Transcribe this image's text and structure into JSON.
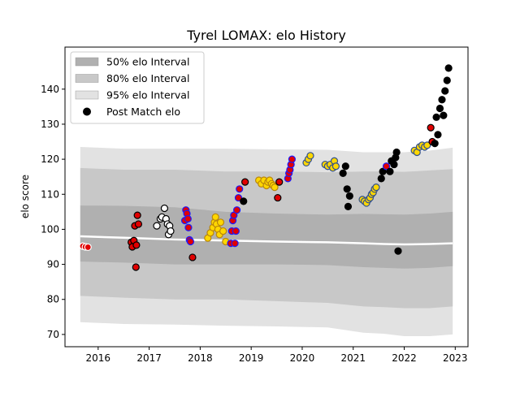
{
  "chart_data": {
    "type": "scatter",
    "title": "Tyrel LOMAX: elo History",
    "xlabel": "",
    "ylabel": "elo score",
    "xlim": [
      2015.35,
      2023.25
    ],
    "ylim": [
      66.5,
      152.0
    ],
    "x_ticks": [
      2016,
      2017,
      2018,
      2019,
      2020,
      2021,
      2022,
      2023
    ],
    "y_ticks": [
      70,
      80,
      90,
      100,
      110,
      120,
      130,
      140
    ],
    "grid": false,
    "legend": {
      "placement": "top-left",
      "entries": [
        {
          "label": "50% elo Interval",
          "kind": "band",
          "color": "#b0b0b0"
        },
        {
          "label": "80% elo Interval",
          "kind": "band",
          "color": "#c8c8c8"
        },
        {
          "label": "95% elo Interval",
          "kind": "band",
          "color": "#e2e2e2"
        },
        {
          "label": "Post Match elo",
          "kind": "marker",
          "color": "#000000"
        }
      ]
    },
    "bands": {
      "x": [
        2015.65,
        2016.5,
        2017.5,
        2018.5,
        2019.5,
        2020.5,
        2021.2,
        2021.6,
        2022.0,
        2022.5,
        2022.95
      ],
      "mean": [
        98.0,
        97.6,
        97.1,
        96.8,
        96.5,
        96.3,
        96.0,
        95.8,
        95.7,
        95.8,
        96.0
      ],
      "ci50": [
        [
          90.8,
          106.8
        ],
        [
          90.5,
          106.7
        ],
        [
          90.0,
          106.3
        ],
        [
          90.0,
          105.0
        ],
        [
          90.0,
          104.5
        ],
        [
          89.8,
          104.2
        ],
        [
          89.2,
          104.4
        ],
        [
          89.0,
          104.3
        ],
        [
          88.8,
          104.2
        ],
        [
          89.0,
          104.5
        ],
        [
          89.5,
          105.0
        ]
      ],
      "ci80": [
        [
          81.0,
          117.5
        ],
        [
          80.5,
          117.0
        ],
        [
          80.0,
          117.0
        ],
        [
          80.0,
          116.5
        ],
        [
          79.5,
          116.5
        ],
        [
          79.0,
          116.3
        ],
        [
          78.0,
          116.5
        ],
        [
          77.8,
          116.5
        ],
        [
          77.5,
          116.4
        ],
        [
          77.5,
          116.8
        ],
        [
          78.0,
          117.2
        ]
      ],
      "ci95": [
        [
          73.5,
          123.5
        ],
        [
          73.0,
          123.0
        ],
        [
          72.8,
          123.0
        ],
        [
          72.5,
          123.0
        ],
        [
          72.3,
          122.8
        ],
        [
          72.0,
          122.7
        ],
        [
          70.5,
          122.0
        ],
        [
          70.2,
          122.0
        ],
        [
          69.5,
          122.0
        ],
        [
          69.5,
          122.5
        ],
        [
          70.0,
          123.3
        ]
      ]
    },
    "series": [
      {
        "name": "Post Match elo",
        "points": [
          {
            "x": 2015.7,
            "y": 95.2,
            "fill": "#e00000",
            "edge": "#ffffff"
          },
          {
            "x": 2015.75,
            "y": 95.0,
            "fill": "#e00000",
            "edge": "#ffffff"
          },
          {
            "x": 2015.8,
            "y": 94.9,
            "fill": "#e00000",
            "edge": "#ffffff"
          },
          {
            "x": 2016.65,
            "y": 96.3,
            "fill": "#e00000",
            "edge": "#000000"
          },
          {
            "x": 2016.67,
            "y": 95.0,
            "fill": "#e00000",
            "edge": "#000000"
          },
          {
            "x": 2016.7,
            "y": 96.8,
            "fill": "#e00000",
            "edge": "#000000"
          },
          {
            "x": 2016.72,
            "y": 101.0,
            "fill": "#e00000",
            "edge": "#000000"
          },
          {
            "x": 2016.74,
            "y": 89.2,
            "fill": "#e00000",
            "edge": "#000000"
          },
          {
            "x": 2016.75,
            "y": 95.5,
            "fill": "#e00000",
            "edge": "#000000"
          },
          {
            "x": 2016.77,
            "y": 104.0,
            "fill": "#e00000",
            "edge": "#000000"
          },
          {
            "x": 2016.79,
            "y": 101.5,
            "fill": "#e00000",
            "edge": "#000000"
          },
          {
            "x": 2017.15,
            "y": 101.0,
            "fill": "#ffffff",
            "edge": "#000000"
          },
          {
            "x": 2017.22,
            "y": 103.0,
            "fill": "#ffffff",
            "edge": "#000000"
          },
          {
            "x": 2017.25,
            "y": 103.5,
            "fill": "#ffffff",
            "edge": "#000000"
          },
          {
            "x": 2017.3,
            "y": 106.0,
            "fill": "#ffffff",
            "edge": "#000000"
          },
          {
            "x": 2017.33,
            "y": 103.0,
            "fill": "#ffffff",
            "edge": "#000000"
          },
          {
            "x": 2017.36,
            "y": 101.5,
            "fill": "#ffffff",
            "edge": "#000000"
          },
          {
            "x": 2017.38,
            "y": 98.5,
            "fill": "#ffffff",
            "edge": "#000000"
          },
          {
            "x": 2017.4,
            "y": 101.0,
            "fill": "#ffffff",
            "edge": "#000000"
          },
          {
            "x": 2017.42,
            "y": 99.5,
            "fill": "#ffffff",
            "edge": "#000000"
          },
          {
            "x": 2017.7,
            "y": 102.5,
            "fill": "#e00000",
            "edge": "#1a1aff"
          },
          {
            "x": 2017.72,
            "y": 105.5,
            "fill": "#e00000",
            "edge": "#1a1aff"
          },
          {
            "x": 2017.74,
            "y": 104.5,
            "fill": "#e00000",
            "edge": "#1a1aff"
          },
          {
            "x": 2017.76,
            "y": 103.0,
            "fill": "#e00000",
            "edge": "#1a1aff"
          },
          {
            "x": 2017.77,
            "y": 100.5,
            "fill": "#e00000",
            "edge": "#1a1aff"
          },
          {
            "x": 2017.79,
            "y": 97.0,
            "fill": "#e00000",
            "edge": "#1a1aff"
          },
          {
            "x": 2017.81,
            "y": 96.5,
            "fill": "#e00000",
            "edge": "#1a1aff"
          },
          {
            "x": 2017.85,
            "y": 92.0,
            "fill": "#e00000",
            "edge": "#000000"
          },
          {
            "x": 2018.15,
            "y": 97.5,
            "fill": "#ffd700",
            "edge": "#b8860b"
          },
          {
            "x": 2018.2,
            "y": 99.0,
            "fill": "#ffd700",
            "edge": "#b8860b"
          },
          {
            "x": 2018.25,
            "y": 100.5,
            "fill": "#ffd700",
            "edge": "#b8860b"
          },
          {
            "x": 2018.28,
            "y": 102.0,
            "fill": "#ffd700",
            "edge": "#b8860b"
          },
          {
            "x": 2018.3,
            "y": 103.5,
            "fill": "#ffd700",
            "edge": "#b8860b"
          },
          {
            "x": 2018.32,
            "y": 101.5,
            "fill": "#ffd700",
            "edge": "#b8860b"
          },
          {
            "x": 2018.35,
            "y": 100.0,
            "fill": "#ffd700",
            "edge": "#b8860b"
          },
          {
            "x": 2018.38,
            "y": 98.5,
            "fill": "#ffd700",
            "edge": "#b8860b"
          },
          {
            "x": 2018.4,
            "y": 102.0,
            "fill": "#ffd700",
            "edge": "#b8860b"
          },
          {
            "x": 2018.45,
            "y": 99.5,
            "fill": "#ffd700",
            "edge": "#b8860b"
          },
          {
            "x": 2018.5,
            "y": 96.5,
            "fill": "#ffd700",
            "edge": "#b8860b"
          },
          {
            "x": 2018.6,
            "y": 96.0,
            "fill": "#e00000",
            "edge": "#1a1aff"
          },
          {
            "x": 2018.62,
            "y": 99.5,
            "fill": "#e00000",
            "edge": "#1a1aff"
          },
          {
            "x": 2018.64,
            "y": 102.5,
            "fill": "#e00000",
            "edge": "#1a1aff"
          },
          {
            "x": 2018.66,
            "y": 104.0,
            "fill": "#e00000",
            "edge": "#1a1aff"
          },
          {
            "x": 2018.68,
            "y": 96.0,
            "fill": "#e00000",
            "edge": "#1a1aff"
          },
          {
            "x": 2018.7,
            "y": 99.5,
            "fill": "#e00000",
            "edge": "#1a1aff"
          },
          {
            "x": 2018.72,
            "y": 105.5,
            "fill": "#e00000",
            "edge": "#1a1aff"
          },
          {
            "x": 2018.75,
            "y": 109.0,
            "fill": "#e00000",
            "edge": "#1a1aff"
          },
          {
            "x": 2018.77,
            "y": 111.5,
            "fill": "#e00000",
            "edge": "#1a1aff"
          },
          {
            "x": 2018.85,
            "y": 108.0,
            "fill": "#000000",
            "edge": "#000000"
          },
          {
            "x": 2018.88,
            "y": 113.5,
            "fill": "#e00000",
            "edge": "#000000"
          },
          {
            "x": 2019.15,
            "y": 114.0,
            "fill": "#ffd700",
            "edge": "#b8860b"
          },
          {
            "x": 2019.2,
            "y": 113.0,
            "fill": "#ffd700",
            "edge": "#b8860b"
          },
          {
            "x": 2019.25,
            "y": 114.0,
            "fill": "#ffd700",
            "edge": "#b8860b"
          },
          {
            "x": 2019.3,
            "y": 112.5,
            "fill": "#ffd700",
            "edge": "#b8860b"
          },
          {
            "x": 2019.33,
            "y": 113.5,
            "fill": "#ffd700",
            "edge": "#b8860b"
          },
          {
            "x": 2019.36,
            "y": 114.0,
            "fill": "#ffd700",
            "edge": "#b8860b"
          },
          {
            "x": 2019.4,
            "y": 113.0,
            "fill": "#ffd700",
            "edge": "#b8860b"
          },
          {
            "x": 2019.43,
            "y": 112.5,
            "fill": "#ffd700",
            "edge": "#b8860b"
          },
          {
            "x": 2019.46,
            "y": 112.0,
            "fill": "#ffd700",
            "edge": "#b8860b"
          },
          {
            "x": 2019.52,
            "y": 109.0,
            "fill": "#e00000",
            "edge": "#000000"
          },
          {
            "x": 2019.55,
            "y": 113.5,
            "fill": "#e00000",
            "edge": "#000000"
          },
          {
            "x": 2019.72,
            "y": 114.5,
            "fill": "#e00000",
            "edge": "#1a1aff"
          },
          {
            "x": 2019.74,
            "y": 116.0,
            "fill": "#e00000",
            "edge": "#1a1aff"
          },
          {
            "x": 2019.76,
            "y": 117.0,
            "fill": "#e00000",
            "edge": "#1a1aff"
          },
          {
            "x": 2019.78,
            "y": 118.5,
            "fill": "#e00000",
            "edge": "#1a1aff"
          },
          {
            "x": 2019.8,
            "y": 120.0,
            "fill": "#e00000",
            "edge": "#1a1aff"
          },
          {
            "x": 2020.08,
            "y": 119.0,
            "fill": "#ffd700",
            "edge": "#2f4f8f"
          },
          {
            "x": 2020.12,
            "y": 120.0,
            "fill": "#ffd700",
            "edge": "#2f4f8f"
          },
          {
            "x": 2020.16,
            "y": 121.0,
            "fill": "#ffd700",
            "edge": "#2f4f8f"
          },
          {
            "x": 2020.45,
            "y": 118.5,
            "fill": "#ffd700",
            "edge": "#2f4f8f"
          },
          {
            "x": 2020.5,
            "y": 118.0,
            "fill": "#ffd700",
            "edge": "#2f4f8f"
          },
          {
            "x": 2020.55,
            "y": 118.5,
            "fill": "#ffd700",
            "edge": "#2f4f8f"
          },
          {
            "x": 2020.6,
            "y": 117.5,
            "fill": "#ffd700",
            "edge": "#2f4f8f"
          },
          {
            "x": 2020.63,
            "y": 119.5,
            "fill": "#ffd700",
            "edge": "#2f4f8f"
          },
          {
            "x": 2020.66,
            "y": 118.0,
            "fill": "#ffd700",
            "edge": "#2f4f8f"
          },
          {
            "x": 2020.8,
            "y": 116.0,
            "fill": "#000000",
            "edge": "#000000"
          },
          {
            "x": 2020.85,
            "y": 118.0,
            "fill": "#000000",
            "edge": "#000000"
          },
          {
            "x": 2020.88,
            "y": 111.5,
            "fill": "#000000",
            "edge": "#000000"
          },
          {
            "x": 2020.9,
            "y": 106.5,
            "fill": "#000000",
            "edge": "#000000"
          },
          {
            "x": 2020.93,
            "y": 109.5,
            "fill": "#000000",
            "edge": "#000000"
          },
          {
            "x": 2021.18,
            "y": 108.5,
            "fill": "#ffd700",
            "edge": "#2f4f8f"
          },
          {
            "x": 2021.22,
            "y": 108.0,
            "fill": "#ffd700",
            "edge": "#2f4f8f"
          },
          {
            "x": 2021.26,
            "y": 107.5,
            "fill": "#ffd700",
            "edge": "#2f4f8f"
          },
          {
            "x": 2021.3,
            "y": 108.5,
            "fill": "#ffd700",
            "edge": "#2f4f8f"
          },
          {
            "x": 2021.33,
            "y": 109.0,
            "fill": "#ffd700",
            "edge": "#2f4f8f"
          },
          {
            "x": 2021.36,
            "y": 110.0,
            "fill": "#ffd700",
            "edge": "#2f4f8f"
          },
          {
            "x": 2021.39,
            "y": 110.5,
            "fill": "#ffd700",
            "edge": "#2f4f8f"
          },
          {
            "x": 2021.42,
            "y": 111.5,
            "fill": "#ffd700",
            "edge": "#2f4f8f"
          },
          {
            "x": 2021.45,
            "y": 112.0,
            "fill": "#ffd700",
            "edge": "#2f4f8f"
          },
          {
            "x": 2021.55,
            "y": 114.5,
            "fill": "#000000",
            "edge": "#000000"
          },
          {
            "x": 2021.58,
            "y": 116.5,
            "fill": "#000000",
            "edge": "#000000"
          },
          {
            "x": 2021.65,
            "y": 118.0,
            "fill": "#e00000",
            "edge": "#1a1aff"
          },
          {
            "x": 2021.72,
            "y": 116.5,
            "fill": "#000000",
            "edge": "#000000"
          },
          {
            "x": 2021.75,
            "y": 119.5,
            "fill": "#000000",
            "edge": "#000000"
          },
          {
            "x": 2021.8,
            "y": 118.5,
            "fill": "#000000",
            "edge": "#000000"
          },
          {
            "x": 2021.83,
            "y": 120.5,
            "fill": "#000000",
            "edge": "#000000"
          },
          {
            "x": 2021.85,
            "y": 122.0,
            "fill": "#000000",
            "edge": "#000000"
          },
          {
            "x": 2021.88,
            "y": 93.8,
            "fill": "#000000",
            "edge": "#000000"
          },
          {
            "x": 2022.2,
            "y": 122.5,
            "fill": "#ffd700",
            "edge": "#2f4f8f"
          },
          {
            "x": 2022.25,
            "y": 122.0,
            "fill": "#ffd700",
            "edge": "#2f4f8f"
          },
          {
            "x": 2022.3,
            "y": 123.5,
            "fill": "#ffd700",
            "edge": "#2f4f8f"
          },
          {
            "x": 2022.35,
            "y": 124.0,
            "fill": "#ffd700",
            "edge": "#2f4f8f"
          },
          {
            "x": 2022.4,
            "y": 123.5,
            "fill": "#ffd700",
            "edge": "#2f4f8f"
          },
          {
            "x": 2022.45,
            "y": 124.0,
            "fill": "#ffd700",
            "edge": "#2f4f8f"
          },
          {
            "x": 2022.52,
            "y": 129.0,
            "fill": "#e00000",
            "edge": "#000000"
          },
          {
            "x": 2022.55,
            "y": 125.0,
            "fill": "#e00000",
            "edge": "#000000"
          },
          {
            "x": 2022.6,
            "y": 124.5,
            "fill": "#000000",
            "edge": "#000000"
          },
          {
            "x": 2022.63,
            "y": 132.0,
            "fill": "#000000",
            "edge": "#000000"
          },
          {
            "x": 2022.66,
            "y": 127.0,
            "fill": "#000000",
            "edge": "#000000"
          },
          {
            "x": 2022.7,
            "y": 134.5,
            "fill": "#000000",
            "edge": "#000000"
          },
          {
            "x": 2022.74,
            "y": 137.0,
            "fill": "#000000",
            "edge": "#000000"
          },
          {
            "x": 2022.77,
            "y": 132.5,
            "fill": "#000000",
            "edge": "#000000"
          },
          {
            "x": 2022.8,
            "y": 139.5,
            "fill": "#000000",
            "edge": "#000000"
          },
          {
            "x": 2022.84,
            "y": 142.5,
            "fill": "#000000",
            "edge": "#000000"
          },
          {
            "x": 2022.87,
            "y": 146.0,
            "fill": "#000000",
            "edge": "#000000"
          }
        ]
      }
    ]
  }
}
